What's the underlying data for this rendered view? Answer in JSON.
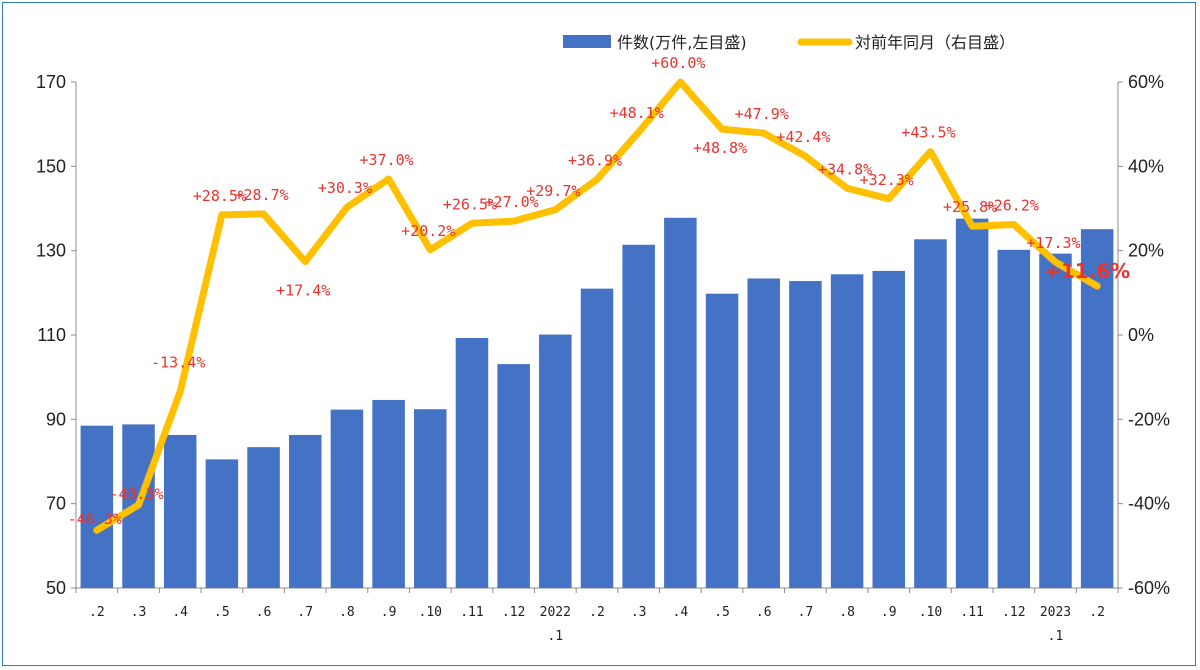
{
  "chart_data": {
    "type": "bar+line",
    "legend": {
      "bar": "件数(万件,左目盛)",
      "line": "対前年同月（右目盛）",
      "placement": "top-right"
    },
    "categories": [
      ".2",
      ".3",
      ".4",
      ".5",
      ".6",
      ".7",
      ".8",
      ".9",
      ".10",
      ".11",
      ".12",
      "2022\n.1",
      ".2",
      ".3",
      ".4",
      ".5",
      ".6",
      ".7",
      ".8",
      ".9",
      ".10",
      ".11",
      ".12",
      "2023\n.1",
      ".2"
    ],
    "series": [
      {
        "name": "件数(万件,左目盛)",
        "axis": "left",
        "values": [
          88.5,
          88.8,
          86.3,
          80.5,
          83.4,
          86.3,
          92.3,
          94.6,
          92.4,
          109.3,
          103.1,
          110.1,
          121.0,
          131.4,
          137.8,
          119.8,
          123.4,
          122.8,
          124.4,
          125.2,
          132.7,
          137.6,
          130.2,
          129.3,
          135.1
        ]
      },
      {
        "name": "対前年同月（右目盛）",
        "axis": "right",
        "values": [
          -46.3,
          -40.3,
          -13.4,
          28.5,
          28.7,
          17.4,
          30.3,
          37.0,
          20.2,
          26.5,
          27.0,
          29.7,
          36.9,
          48.1,
          60.0,
          48.8,
          47.9,
          42.4,
          34.8,
          32.3,
          43.5,
          25.8,
          26.2,
          17.3,
          11.6
        ],
        "labels": [
          "-46.3%",
          "-40.3%",
          "-13.4%",
          "+28.5%",
          "+28.7%",
          "+17.4%",
          "+30.3%",
          "+37.0%",
          "+20.2%",
          "+26.5%",
          "+27.0%",
          "+29.7%",
          "+36.9%",
          "+48.1%",
          "+60.0%",
          "+48.8%",
          "+47.9%",
          "+42.4%",
          "+34.8%",
          "+32.3%",
          "+43.5%",
          "+25.8%",
          "+26.2%",
          "+17.3%",
          "+11.6%"
        ]
      }
    ],
    "left_axis": {
      "ylim": [
        50,
        170
      ],
      "ticks": [
        "50",
        "70",
        "90",
        "110",
        "130",
        "150",
        "170"
      ]
    },
    "right_axis": {
      "ylim": [
        -60,
        60
      ],
      "ticks": [
        "-60%",
        "-40%",
        "-20%",
        "0%",
        "20%",
        "40%",
        "60%"
      ]
    },
    "grid": false,
    "colors": {
      "bar": "#4472c4",
      "line": "#ffc000",
      "label": "#e8342f"
    }
  }
}
